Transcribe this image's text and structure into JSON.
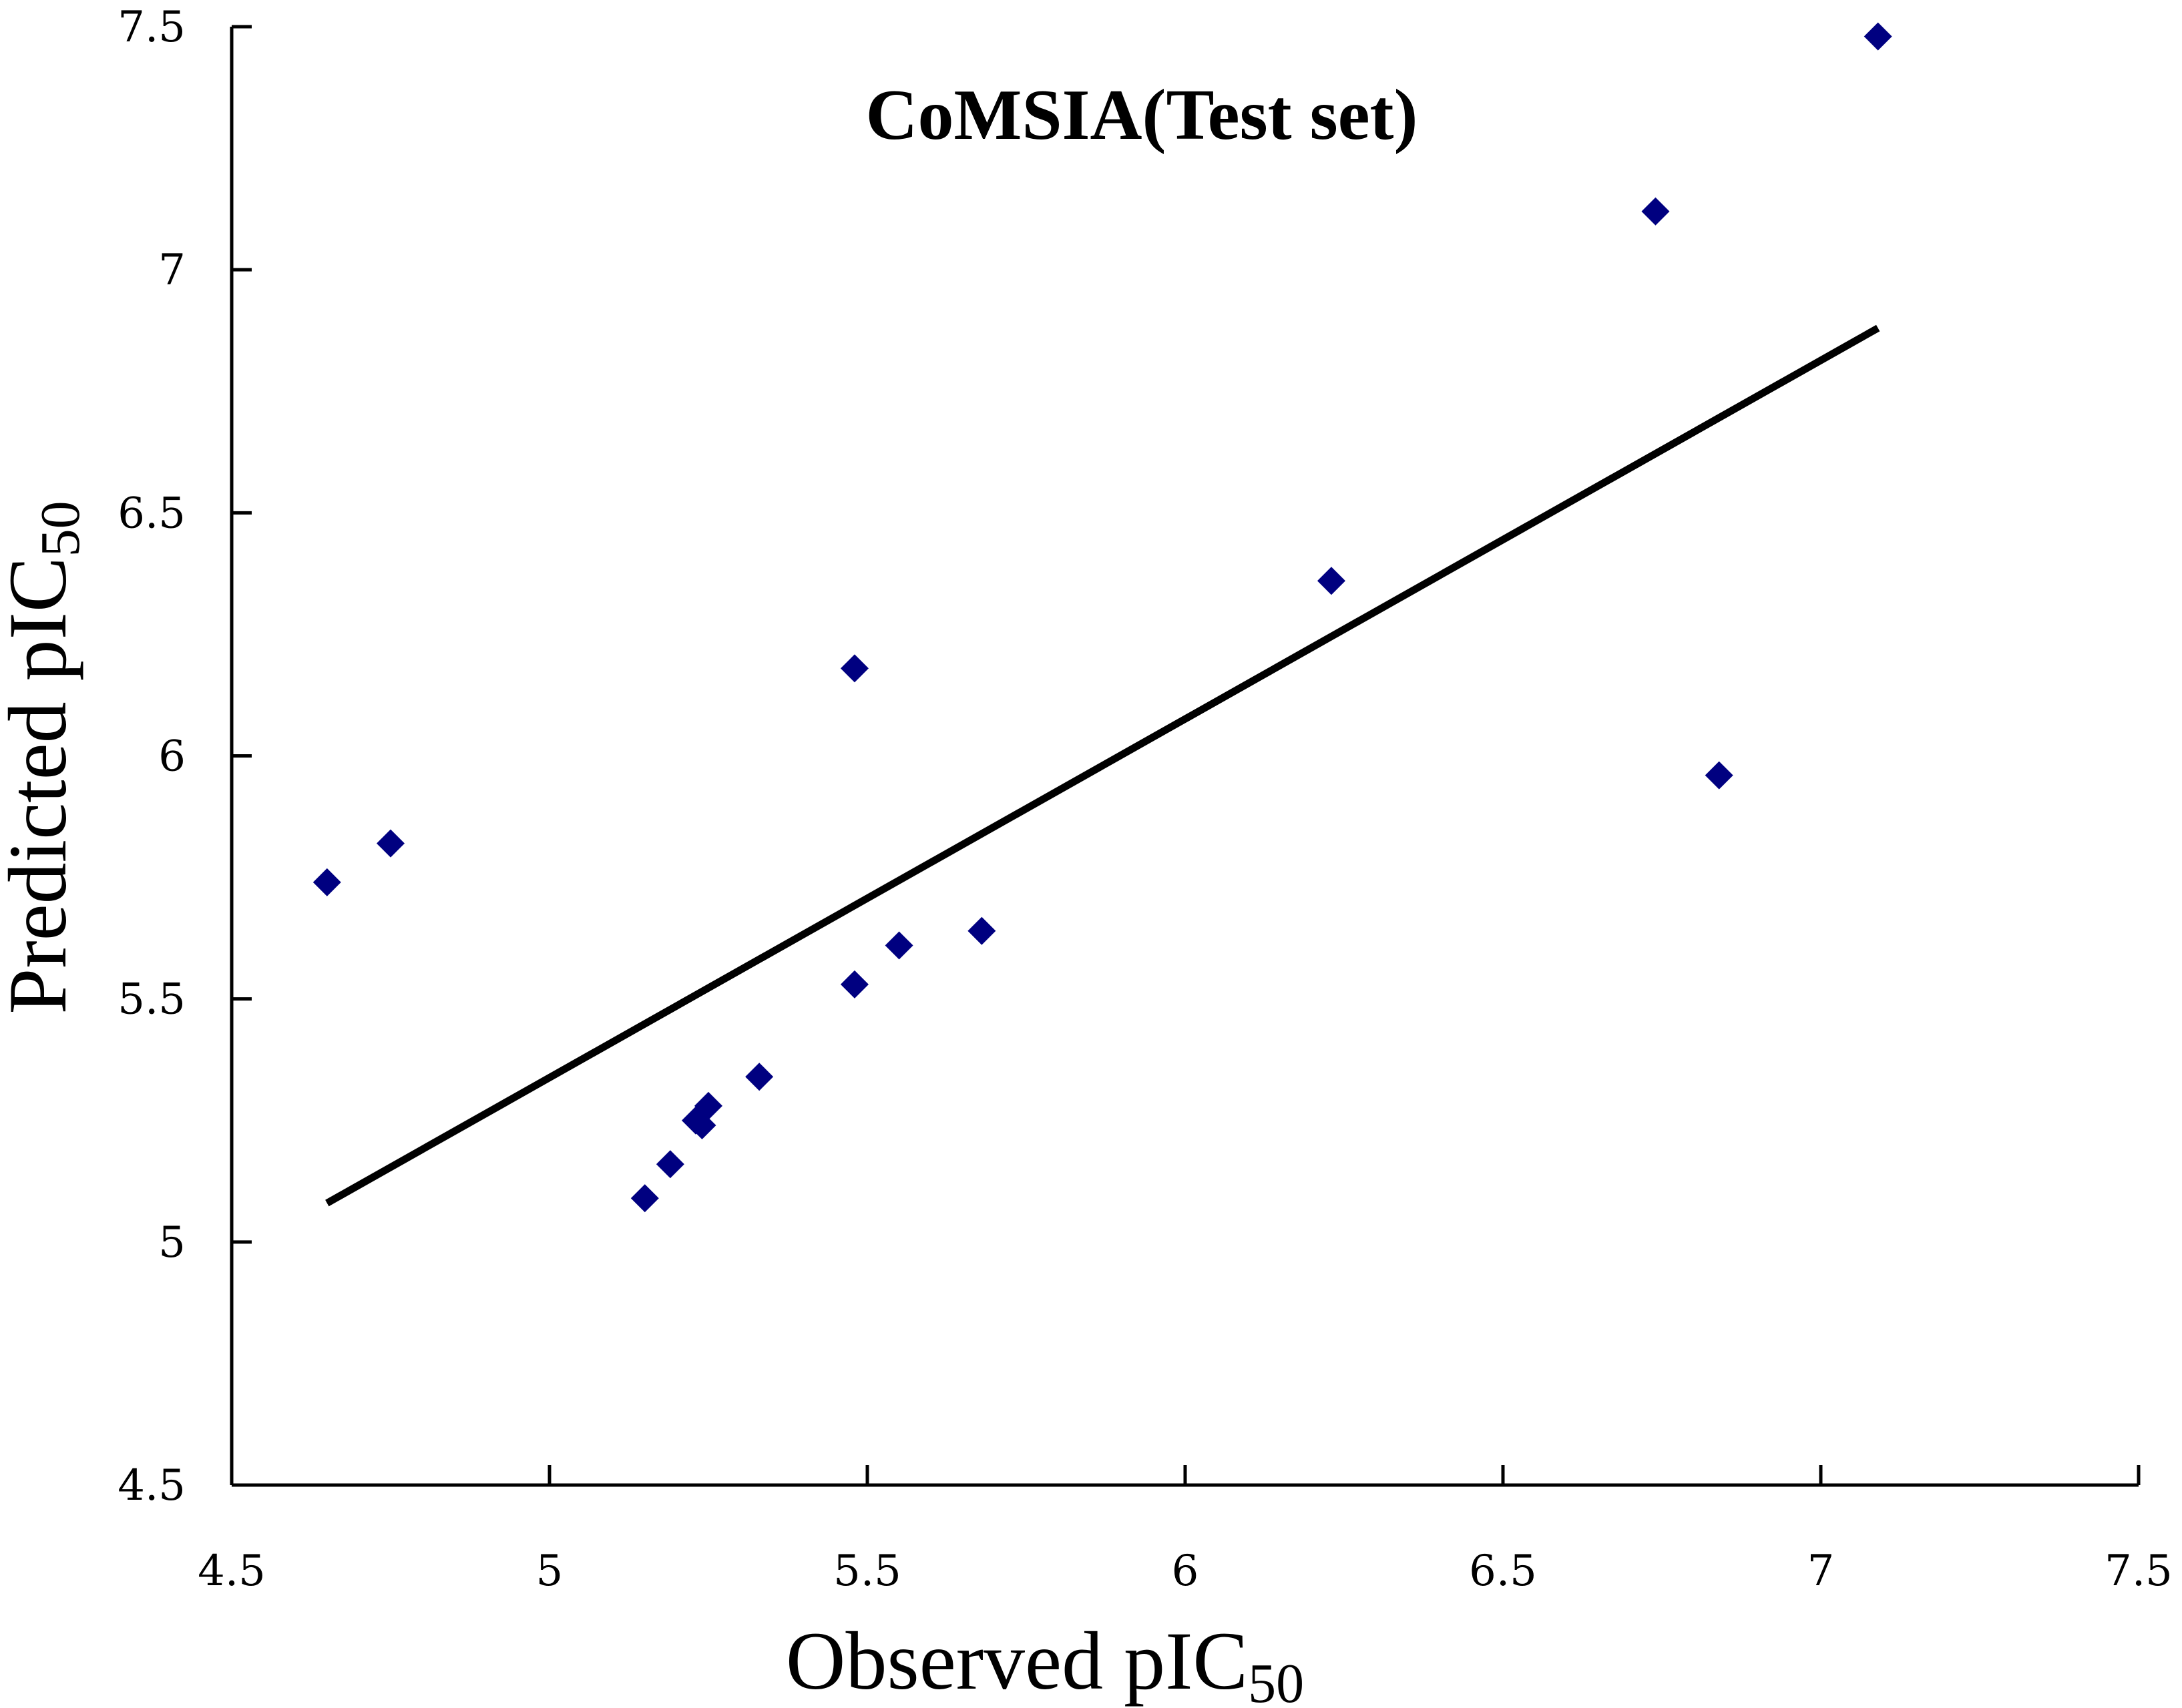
{
  "chart_data": {
    "type": "scatter",
    "title": "CoMSIA(Test set)",
    "xlabel": {
      "main": "Observed pIC",
      "subscript": "50"
    },
    "ylabel": {
      "main": "Predicted pIC",
      "subscript": "50"
    },
    "xlim": [
      4.5,
      7.5
    ],
    "ylim": [
      4.5,
      7.5
    ],
    "xticks": [
      4.5,
      5,
      5.5,
      6,
      6.5,
      7,
      7.5
    ],
    "yticks": [
      4.5,
      5,
      5.5,
      6,
      6.5,
      7,
      7.5
    ],
    "xtick_labels": [
      "4.5",
      "5",
      "5.5",
      "6",
      "6.5",
      "7",
      "7.5"
    ],
    "ytick_labels": [
      "4.5",
      "5",
      "5.5",
      "6",
      "6.5",
      "7",
      "7.5"
    ],
    "grid": false,
    "series": [
      {
        "name": "Test set",
        "marker": "diamond",
        "color": "#000080",
        "points": [
          {
            "x": 4.65,
            "y": 5.74
          },
          {
            "x": 4.75,
            "y": 5.82
          },
          {
            "x": 5.15,
            "y": 5.09
          },
          {
            "x": 5.19,
            "y": 5.16
          },
          {
            "x": 5.23,
            "y": 5.25
          },
          {
            "x": 5.24,
            "y": 5.24
          },
          {
            "x": 5.25,
            "y": 5.28
          },
          {
            "x": 5.33,
            "y": 5.34
          },
          {
            "x": 5.48,
            "y": 5.53
          },
          {
            "x": 5.48,
            "y": 6.18
          },
          {
            "x": 5.55,
            "y": 5.61
          },
          {
            "x": 5.68,
            "y": 5.64
          },
          {
            "x": 6.23,
            "y": 6.36
          },
          {
            "x": 6.74,
            "y": 7.12
          },
          {
            "x": 6.84,
            "y": 5.96
          },
          {
            "x": 7.09,
            "y": 7.48
          }
        ]
      }
    ],
    "trendline": {
      "color": "#000000",
      "x_start": 4.65,
      "y_start": 5.08,
      "x_end": 7.09,
      "y_end": 6.88
    }
  }
}
